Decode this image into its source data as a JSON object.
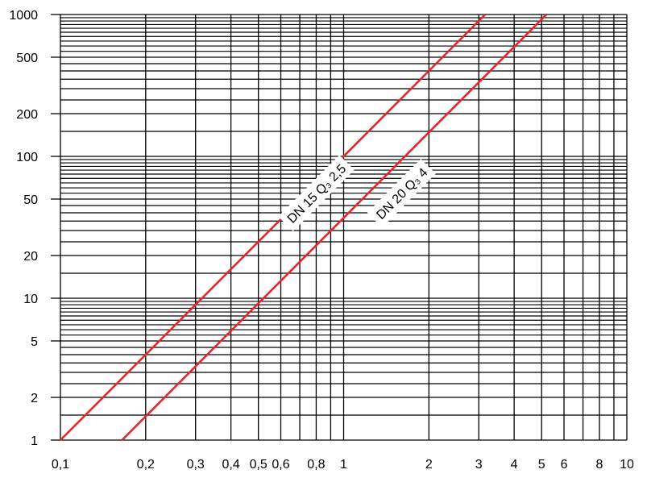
{
  "chart_data": {
    "type": "line",
    "title": "",
    "xlabel": "",
    "ylabel": "",
    "xscale": "log",
    "yscale": "log",
    "xlim": [
      0.1,
      10
    ],
    "ylim": [
      1,
      1000
    ],
    "grid": true,
    "x_ticks": [
      {
        "value": 0.1,
        "label": "0,1"
      },
      {
        "value": 0.2,
        "label": "0,2"
      },
      {
        "value": 0.3,
        "label": "0,3"
      },
      {
        "value": 0.4,
        "label": "0,4"
      },
      {
        "value": 0.5,
        "label": "0,5"
      },
      {
        "value": 0.6,
        "label": "0,6"
      },
      {
        "value": 0.8,
        "label": "0,8"
      },
      {
        "value": 1,
        "label": "1"
      },
      {
        "value": 2,
        "label": "2"
      },
      {
        "value": 3,
        "label": "3"
      },
      {
        "value": 4,
        "label": "4"
      },
      {
        "value": 5,
        "label": "5"
      },
      {
        "value": 6,
        "label": "6"
      },
      {
        "value": 8,
        "label": "8"
      },
      {
        "value": 10,
        "label": "10"
      }
    ],
    "y_ticks": [
      {
        "value": 1,
        "label": "1"
      },
      {
        "value": 2,
        "label": "2"
      },
      {
        "value": 5,
        "label": "5"
      },
      {
        "value": 10,
        "label": "10"
      },
      {
        "value": 20,
        "label": "20"
      },
      {
        "value": 50,
        "label": "50"
      },
      {
        "value": 100,
        "label": "100"
      },
      {
        "value": 200,
        "label": "200"
      },
      {
        "value": 500,
        "label": "500"
      },
      {
        "value": 1000,
        "label": "1000"
      }
    ],
    "series": [
      {
        "name": "DN 15 Q₃ 2,5",
        "color": "#e3262a",
        "x": [
          0.1,
          3.16
        ],
        "y": [
          1,
          1000
        ],
        "label_at": {
          "x": 0.8,
          "y": 55
        }
      },
      {
        "name": "DN 20 Q₃ 4",
        "color": "#e3262a",
        "x": [
          0.165,
          5.2
        ],
        "y": [
          1,
          1000
        ],
        "label_at": {
          "x": 1.6,
          "y": 55
        }
      }
    ]
  }
}
